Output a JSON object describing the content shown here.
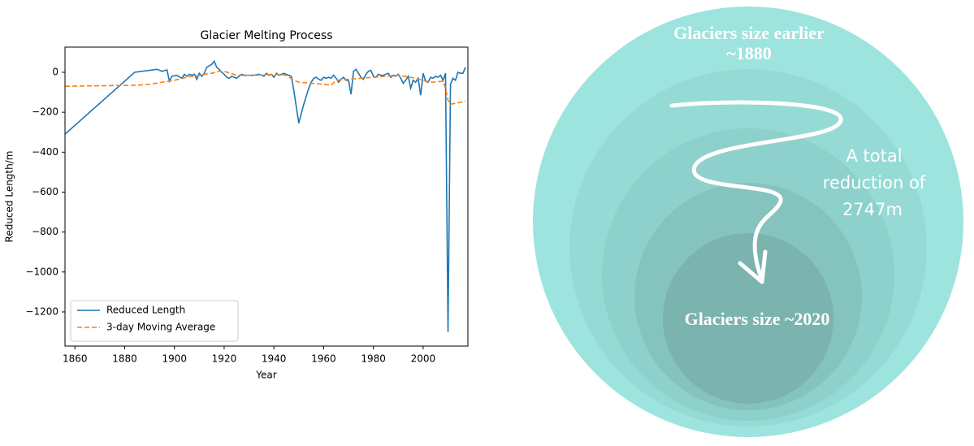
{
  "chart_data": {
    "type": "line",
    "title": "Glacier Melting Process",
    "x_label": "Year",
    "y_label": "Reduced Length/m",
    "xlim": [
      1856,
      2018
    ],
    "ylim": [
      -1371,
      126
    ],
    "xticks": [
      1860,
      1880,
      1900,
      1920,
      1940,
      1960,
      1980,
      2000
    ],
    "yticks": [
      0,
      {
        "value": -200,
        "label": "−200"
      },
      {
        "value": -400,
        "label": "−400"
      },
      {
        "value": -600,
        "label": "−600"
      },
      {
        "value": -800,
        "label": "−800"
      },
      {
        "value": -1000,
        "label": "−1000"
      },
      {
        "value": -1200,
        "label": "−1200"
      }
    ],
    "legend": "lower left",
    "series": [
      {
        "name": "Reduced Length",
        "color": "#1f77b4",
        "style": "solid",
        "x": [
          1856,
          1884,
          1893,
          1895,
          1897,
          1898,
          1899,
          1901,
          1903,
          1904,
          1905,
          1906,
          1907,
          1908,
          1909,
          1910,
          1911,
          1912,
          1913,
          1915,
          1916,
          1917,
          1918,
          1919,
          1920,
          1921,
          1922,
          1923,
          1924,
          1925,
          1926,
          1927,
          1928,
          1930,
          1932,
          1934,
          1936,
          1937,
          1938,
          1939,
          1940,
          1941,
          1942,
          1943,
          1944,
          1945,
          1947,
          1948,
          1950,
          1952,
          1954,
          1955,
          1956,
          1957,
          1958,
          1959,
          1960,
          1961,
          1962,
          1963,
          1964,
          1965,
          1966,
          1967,
          1968,
          1969,
          1970,
          1971,
          1972,
          1973,
          1974,
          1975,
          1976,
          1977,
          1978,
          1979,
          1980,
          1981,
          1982,
          1983,
          1984,
          1985,
          1986,
          1987,
          1988,
          1989,
          1990,
          1991,
          1992,
          1993,
          1994,
          1995,
          1996,
          1997,
          1998,
          1999,
          2000,
          2001,
          2002,
          2003,
          2004,
          2005,
          2006,
          2007,
          2008,
          2009,
          2010,
          2011,
          2012,
          2013,
          2014,
          2015,
          2016,
          2017
        ],
        "values": [
          -310,
          0,
          15,
          5,
          12,
          -45,
          -20,
          -15,
          -30,
          -10,
          -20,
          -10,
          -15,
          -10,
          -35,
          -5,
          -20,
          -5,
          25,
          40,
          55,
          25,
          15,
          0,
          -10,
          -25,
          -30,
          -20,
          -25,
          -30,
          -20,
          -10,
          -15,
          -15,
          -15,
          -10,
          -20,
          -5,
          -15,
          -10,
          -25,
          -5,
          -15,
          -10,
          -5,
          -10,
          -20,
          -90,
          -255,
          -160,
          -80,
          -50,
          -30,
          -25,
          -35,
          -40,
          -25,
          -30,
          -25,
          -30,
          -15,
          -30,
          -50,
          -35,
          -25,
          -40,
          -40,
          -110,
          5,
          15,
          -5,
          -25,
          -35,
          -10,
          5,
          10,
          -20,
          -25,
          -10,
          -15,
          -15,
          -10,
          -5,
          -25,
          -15,
          -20,
          -10,
          -30,
          -55,
          -40,
          -20,
          -80,
          -40,
          -50,
          -30,
          -115,
          -5,
          -45,
          -50,
          -25,
          -30,
          -20,
          -25,
          -15,
          -40,
          -5,
          -1300,
          -60,
          -30,
          -40,
          0,
          -5,
          -5,
          25
        ]
      },
      {
        "name": "3-day Moving Average",
        "color": "#ff7f0e",
        "style": "dashed",
        "x": [
          1856,
          1885,
          1890,
          1895,
          1900,
          1905,
          1910,
          1915,
          1918,
          1920,
          1925,
          1930,
          1935,
          1940,
          1945,
          1948,
          1950,
          1955,
          1960,
          1963,
          1965,
          1970,
          1975,
          1980,
          1985,
          1990,
          1995,
          2000,
          2003,
          2008,
          2009,
          2010,
          2011,
          2013,
          2015,
          2017
        ],
        "values": [
          -70,
          -65,
          -60,
          -50,
          -40,
          -25,
          -15,
          -5,
          5,
          5,
          -15,
          -15,
          -15,
          -10,
          -15,
          -40,
          -50,
          -55,
          -60,
          -65,
          -40,
          -35,
          -30,
          -25,
          -20,
          -15,
          -25,
          -40,
          -50,
          -45,
          -80,
          -140,
          -160,
          -155,
          -150,
          -145
        ]
      }
    ]
  },
  "infographic": {
    "top_label": [
      "Glaciers size earlier",
      "~1880"
    ],
    "side_label": [
      "A total",
      "reduction of",
      "2747m"
    ],
    "bottom_label": "Glaciers size ~2020"
  }
}
